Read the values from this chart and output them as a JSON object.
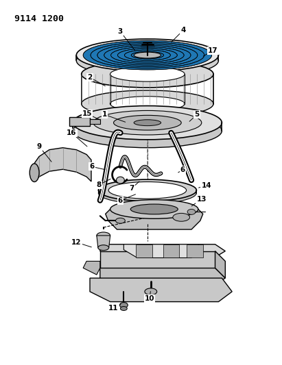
{
  "title": "9114 1200",
  "bg_color": "#ffffff",
  "line_color": "#000000",
  "gray_light": "#c8c8c8",
  "gray_mid": "#a0a0a0",
  "gray_dark": "#707070"
}
